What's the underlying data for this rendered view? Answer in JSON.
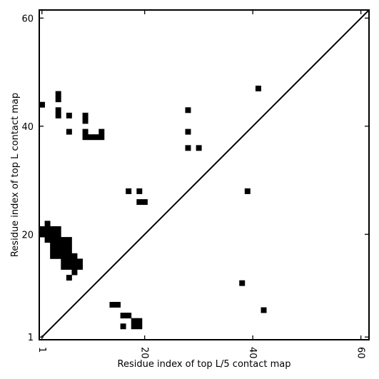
{
  "chart_data": {
    "type": "heatmap",
    "title": "",
    "xlabel": "Residue index of top L/5 contact map",
    "ylabel": "Residue index of top L contact map",
    "xlim": [
      0.5,
      61.5
    ],
    "ylim": [
      0.5,
      61.5
    ],
    "x_ticks": [
      {
        "value": 1,
        "label": "1"
      },
      {
        "value": 20,
        "label": "20"
      },
      {
        "value": 40,
        "label": "40"
      },
      {
        "value": 60,
        "label": "60"
      }
    ],
    "y_ticks": [
      {
        "value": 1,
        "label": "1"
      },
      {
        "value": 20,
        "label": "20"
      },
      {
        "value": 40,
        "label": "40"
      },
      {
        "value": 60,
        "label": "60"
      }
    ],
    "diagonal": true,
    "grid": false,
    "cell_color": "#000000",
    "contacts_upper": [
      [
        1,
        44
      ],
      [
        4,
        46
      ],
      [
        4,
        45
      ],
      [
        4,
        43
      ],
      [
        4,
        42
      ],
      [
        6,
        42
      ],
      [
        6,
        39
      ],
      [
        9,
        42
      ],
      [
        9,
        41
      ],
      [
        9,
        39
      ],
      [
        9,
        38
      ],
      [
        10,
        38
      ],
      [
        11,
        38
      ],
      [
        12,
        38
      ],
      [
        12,
        39
      ],
      [
        28,
        43
      ],
      [
        28,
        39
      ],
      [
        28,
        36
      ],
      [
        30,
        36
      ],
      [
        41,
        47
      ],
      [
        17,
        28
      ],
      [
        19,
        28
      ],
      [
        19,
        26
      ],
      [
        20,
        26
      ],
      [
        39,
        28
      ],
      [
        2,
        22
      ],
      [
        1,
        21
      ],
      [
        2,
        21
      ],
      [
        3,
        21
      ],
      [
        4,
        21
      ],
      [
        1,
        20
      ],
      [
        2,
        20
      ],
      [
        3,
        20
      ],
      [
        4,
        20
      ],
      [
        2,
        19
      ],
      [
        3,
        19
      ],
      [
        4,
        19
      ],
      [
        5,
        19
      ],
      [
        6,
        19
      ],
      [
        3,
        18
      ],
      [
        4,
        18
      ],
      [
        5,
        18
      ],
      [
        6,
        18
      ],
      [
        3,
        17
      ],
      [
        4,
        17
      ],
      [
        5,
        17
      ],
      [
        6,
        17
      ],
      [
        3,
        16
      ],
      [
        4,
        16
      ],
      [
        5,
        16
      ],
      [
        6,
        16
      ],
      [
        7,
        16
      ],
      [
        5,
        15
      ],
      [
        6,
        15
      ],
      [
        7,
        15
      ],
      [
        8,
        15
      ],
      [
        5,
        14
      ],
      [
        6,
        14
      ],
      [
        7,
        14
      ],
      [
        8,
        14
      ],
      [
        7,
        13
      ],
      [
        6,
        12
      ]
    ],
    "contacts_lower": [
      [
        38,
        11
      ],
      [
        14,
        7
      ],
      [
        15,
        7
      ],
      [
        42,
        6
      ],
      [
        16,
        5
      ],
      [
        17,
        5
      ],
      [
        18,
        4
      ],
      [
        19,
        4
      ],
      [
        18,
        3
      ],
      [
        19,
        3
      ],
      [
        16,
        3
      ]
    ]
  }
}
